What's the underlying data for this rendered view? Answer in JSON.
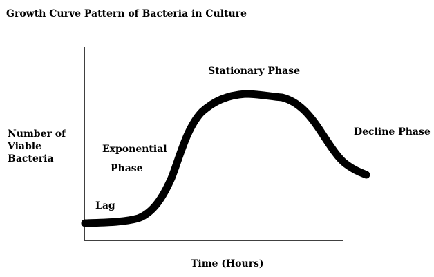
{
  "title": "Growth Curve Pattern of Bacteria in Culture",
  "y_axis_label": [
    "Number of",
    "Viable",
    "Bacteria"
  ],
  "x_axis_label": "Time (Hours)",
  "phases": {
    "lag": "Lag",
    "exponential_line1": "Exponential",
    "exponential_line2": "Phase",
    "stationary": "Stationary Phase",
    "decline": "Decline Phase"
  },
  "colors": {
    "curve": "#000000",
    "axes": "#000000",
    "background": "#ffffff"
  }
}
